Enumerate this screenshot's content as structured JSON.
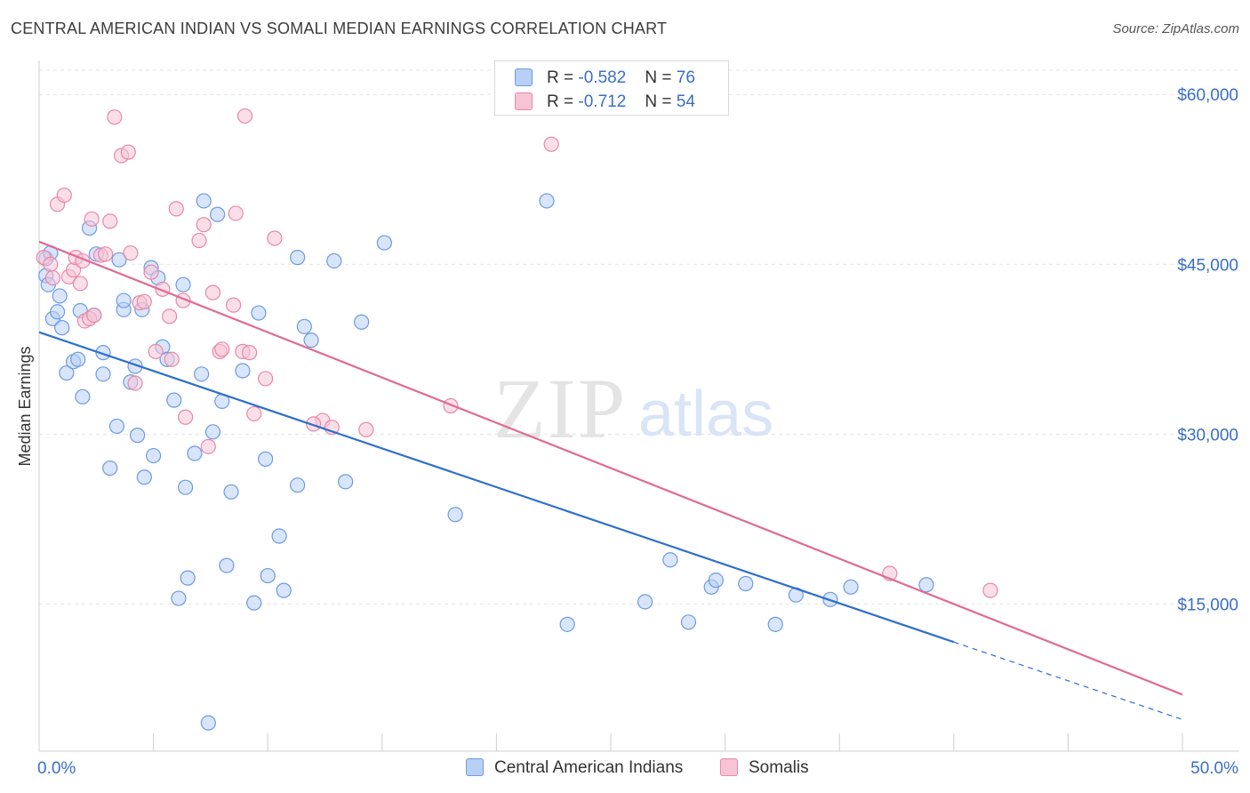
{
  "chart_data": {
    "type": "scatter",
    "title": "CENTRAL AMERICAN INDIAN VS SOMALI MEDIAN EARNINGS CORRELATION CHART",
    "source": "Source: ZipAtlas.com",
    "watermark": [
      "ZIP",
      "atlas"
    ],
    "xlabel": "",
    "ylabel": "Median Earnings",
    "xlim": [
      0,
      50
    ],
    "ylim": [
      2000,
      63000
    ],
    "x_tick_labels": [
      "0.0%",
      "50.0%"
    ],
    "y_ticks": [
      {
        "value": 15000,
        "label": "$15,000"
      },
      {
        "value": 30000,
        "label": "$30,000"
      },
      {
        "value": 45000,
        "label": "$45,000"
      },
      {
        "value": 60000,
        "label": "$60,000"
      }
    ],
    "grid": true,
    "legend_placement": "top-center",
    "series": [
      {
        "name": "Central American Indians",
        "color": "#6d9be0",
        "fill": "#b8d0f5",
        "line_color": "#2f6fcc",
        "legend": {
          "r_label": "R =",
          "r_value": "-0.582",
          "n_label": "N =",
          "n_value": "76"
        },
        "trend": {
          "x0": 0,
          "y0": 39000,
          "x1": 50,
          "y1": 4800,
          "solid_until_x": 40
        },
        "points": [
          [
            0.3,
            45500
          ],
          [
            0.3,
            44000
          ],
          [
            0.4,
            43200
          ],
          [
            0.5,
            46000
          ],
          [
            0.6,
            40200
          ],
          [
            0.8,
            40800
          ],
          [
            0.9,
            42200
          ],
          [
            1.0,
            39400
          ],
          [
            1.2,
            35400
          ],
          [
            1.5,
            36400
          ],
          [
            1.7,
            36600
          ],
          [
            1.8,
            40900
          ],
          [
            1.9,
            33300
          ],
          [
            2.2,
            48200
          ],
          [
            2.4,
            40500
          ],
          [
            2.5,
            45900
          ],
          [
            2.8,
            37200
          ],
          [
            2.8,
            35300
          ],
          [
            3.1,
            27000
          ],
          [
            3.4,
            30700
          ],
          [
            3.5,
            45400
          ],
          [
            3.7,
            41000
          ],
          [
            3.7,
            41800
          ],
          [
            4.0,
            34600
          ],
          [
            4.2,
            36000
          ],
          [
            4.3,
            29900
          ],
          [
            4.5,
            41000
          ],
          [
            4.6,
            26200
          ],
          [
            4.9,
            44700
          ],
          [
            5.0,
            28100
          ],
          [
            5.2,
            43800
          ],
          [
            5.4,
            37700
          ],
          [
            5.6,
            36600
          ],
          [
            5.9,
            33000
          ],
          [
            6.1,
            15500
          ],
          [
            6.3,
            43200
          ],
          [
            6.4,
            25300
          ],
          [
            6.5,
            17300
          ],
          [
            6.8,
            28300
          ],
          [
            7.1,
            35300
          ],
          [
            7.2,
            50600
          ],
          [
            7.4,
            4500
          ],
          [
            7.6,
            30200
          ],
          [
            7.8,
            49400
          ],
          [
            8.0,
            32900
          ],
          [
            8.2,
            18400
          ],
          [
            8.4,
            24900
          ],
          [
            8.9,
            35600
          ],
          [
            9.4,
            15100
          ],
          [
            9.6,
            40700
          ],
          [
            9.9,
            27800
          ],
          [
            10.0,
            17500
          ],
          [
            10.5,
            21000
          ],
          [
            10.7,
            16200
          ],
          [
            11.3,
            45600
          ],
          [
            11.3,
            25500
          ],
          [
            11.6,
            39500
          ],
          [
            11.9,
            38300
          ],
          [
            12.9,
            45300
          ],
          [
            13.4,
            25800
          ],
          [
            14.1,
            39900
          ],
          [
            15.1,
            46900
          ],
          [
            18.2,
            22900
          ],
          [
            22.2,
            50600
          ],
          [
            23.1,
            13200
          ],
          [
            26.5,
            15200
          ],
          [
            27.6,
            18900
          ],
          [
            28.4,
            13400
          ],
          [
            29.4,
            16500
          ],
          [
            29.6,
            17100
          ],
          [
            30.9,
            16800
          ],
          [
            32.2,
            13200
          ],
          [
            33.1,
            15800
          ],
          [
            34.6,
            15400
          ],
          [
            38.8,
            16700
          ],
          [
            35.5,
            16500
          ]
        ]
      },
      {
        "name": "Somalis",
        "color": "#e888a8",
        "fill": "#f7c4d6",
        "line_color": "#e06a95",
        "legend": {
          "r_label": "R =",
          "r_value": "-0.712",
          "n_label": "N =",
          "n_value": "54"
        },
        "trend": {
          "x0": 0,
          "y0": 47000,
          "x1": 50,
          "y1": 7000
        },
        "points": [
          [
            0.2,
            45600
          ],
          [
            0.5,
            45000
          ],
          [
            0.6,
            43800
          ],
          [
            0.8,
            50300
          ],
          [
            1.1,
            51100
          ],
          [
            1.3,
            43900
          ],
          [
            1.5,
            44500
          ],
          [
            1.6,
            45600
          ],
          [
            1.8,
            43300
          ],
          [
            1.9,
            45300
          ],
          [
            2.0,
            40000
          ],
          [
            2.2,
            40200
          ],
          [
            2.3,
            49000
          ],
          [
            2.4,
            40500
          ],
          [
            2.7,
            45800
          ],
          [
            2.9,
            45900
          ],
          [
            3.1,
            48800
          ],
          [
            3.3,
            58000
          ],
          [
            3.6,
            54600
          ],
          [
            3.9,
            54900
          ],
          [
            4.0,
            46000
          ],
          [
            4.2,
            34500
          ],
          [
            4.4,
            41600
          ],
          [
            4.6,
            41700
          ],
          [
            4.9,
            44300
          ],
          [
            5.1,
            37300
          ],
          [
            5.4,
            42800
          ],
          [
            5.7,
            40400
          ],
          [
            5.8,
            36600
          ],
          [
            6.0,
            49900
          ],
          [
            6.3,
            41800
          ],
          [
            6.4,
            31500
          ],
          [
            7.0,
            47100
          ],
          [
            7.2,
            48500
          ],
          [
            7.4,
            28900
          ],
          [
            7.6,
            42500
          ],
          [
            7.9,
            37300
          ],
          [
            8.0,
            37500
          ],
          [
            8.5,
            41400
          ],
          [
            8.9,
            37300
          ],
          [
            8.6,
            49500
          ],
          [
            9.0,
            58100
          ],
          [
            9.2,
            37200
          ],
          [
            9.4,
            31800
          ],
          [
            9.9,
            34900
          ],
          [
            10.3,
            47300
          ],
          [
            12.4,
            31200
          ],
          [
            12.8,
            30600
          ],
          [
            14.3,
            30400
          ],
          [
            18.0,
            32500
          ],
          [
            22.4,
            55600
          ],
          [
            37.2,
            17700
          ],
          [
            41.6,
            16200
          ],
          [
            12.0,
            30900
          ]
        ]
      }
    ]
  }
}
